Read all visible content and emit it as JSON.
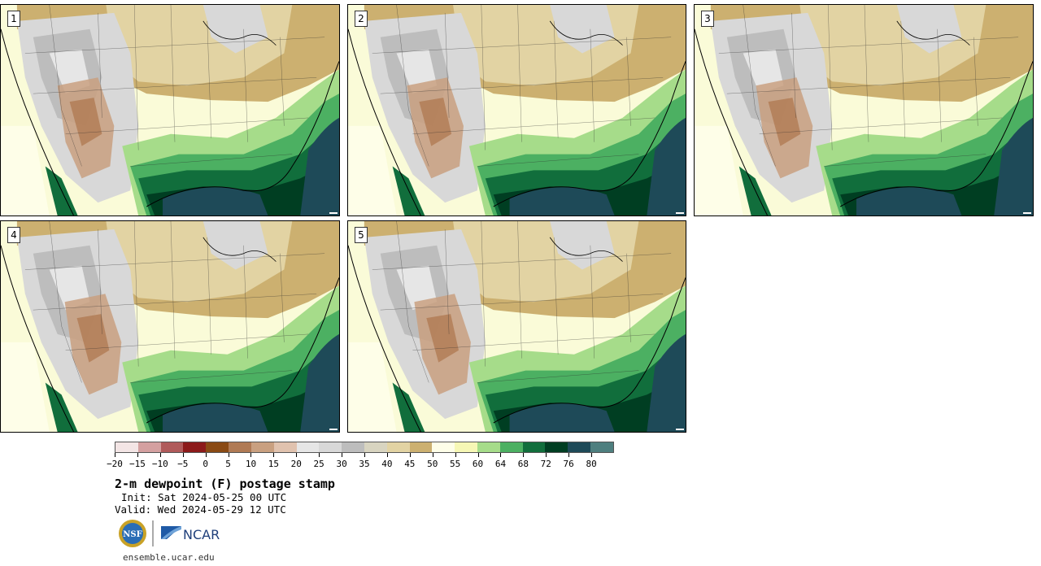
{
  "panels": [
    {
      "label": "1"
    },
    {
      "label": "2"
    },
    {
      "label": "3"
    },
    {
      "label": "4"
    },
    {
      "label": "5"
    }
  ],
  "colorbar": {
    "colors": [
      "#f3e5e5",
      "#d4a0a0",
      "#b05a5a",
      "#8c1a1a",
      "#8a4a14",
      "#b07a54",
      "#c9a080",
      "#e0c2ae",
      "#e6e6e6",
      "#d8d8d8",
      "#bdbdbd",
      "#d8d4c0",
      "#e2d3a3",
      "#ccb070",
      "#fefee8",
      "#f6f7b5",
      "#a6dc8a",
      "#4cb062",
      "#116e3c",
      "#003e22",
      "#1e4a58",
      "#4e7f7f"
    ],
    "tick_labels": [
      "−20",
      "−15",
      "−10",
      "−5",
      "0",
      "5",
      "10",
      "15",
      "20",
      "25",
      "30",
      "35",
      "40",
      "45",
      "50",
      "55",
      "60",
      "64",
      "68",
      "72",
      "76",
      "80"
    ]
  },
  "title": "2-m dewpoint (F) postage stamp",
  "init": "Init: Sat 2024-05-25 00 UTC",
  "valid": "Valid: Wed 2024-05-29 12 UTC",
  "logos": {
    "nsf": "NSF",
    "ncar": "NCAR"
  },
  "url": "ensemble.ucar.edu"
}
